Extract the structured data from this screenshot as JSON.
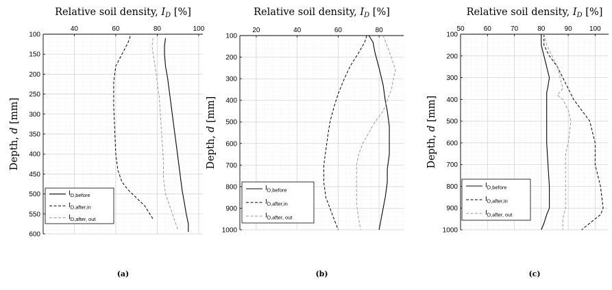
{
  "chart_data": [
    {
      "type": "line",
      "title": "Relative soil density, I_D [%]",
      "title_parts": [
        "Relative soil density, ",
        "I",
        "D",
        " [%]"
      ],
      "ylabel": "Depth, d [mm]",
      "ylabel_parts": [
        "Depth, ",
        "d",
        " [mm]"
      ],
      "caption": "(a)",
      "xlim": [
        25,
        102
      ],
      "ylim": [
        600,
        100
      ],
      "x_axis_position": "top",
      "xticks": [
        40,
        60,
        80,
        100
      ],
      "yticks": [
        100,
        150,
        200,
        250,
        300,
        350,
        400,
        450,
        500,
        550,
        600
      ],
      "grid": true,
      "legend_position": "bottom-left",
      "series": [
        {
          "name": "I_D,before",
          "legend_main": "I",
          "legend_sub": "D,before",
          "style": "solid",
          "color": "#000000",
          "x": [
            84,
            83.5,
            83.5,
            84,
            85,
            86,
            87,
            88,
            89,
            90,
            91,
            92,
            93,
            94,
            95,
            95
          ],
          "y": [
            110,
            130,
            150,
            180,
            210,
            250,
            290,
            330,
            370,
            410,
            450,
            490,
            520,
            550,
            575,
            595
          ]
        },
        {
          "name": "I_D,after,in",
          "legend_main": "I",
          "legend_sub": "D,after,in",
          "style": "dashed",
          "color": "#000000",
          "x": [
            67,
            66,
            63,
            60,
            59,
            59,
            59.5,
            60,
            61,
            63,
            66,
            70,
            74,
            78
          ],
          "y": [
            105,
            120,
            150,
            180,
            220,
            280,
            340,
            400,
            440,
            470,
            490,
            510,
            530,
            563
          ]
        },
        {
          "name": "I_D,after, out",
          "legend_main": "I",
          "legend_sub": "D,after, out",
          "style": "dashed",
          "color": "#999999",
          "x": [
            78,
            77.5,
            78,
            79,
            80,
            81,
            81.5,
            82,
            82.5,
            83,
            83,
            84,
            86,
            88,
            90
          ],
          "y": [
            110,
            130,
            150,
            180,
            220,
            260,
            300,
            340,
            380,
            420,
            460,
            500,
            530,
            560,
            590
          ]
        }
      ]
    },
    {
      "type": "line",
      "title": "Relative soil density, I_D [%]",
      "title_parts": [
        "Relative soil density, ",
        "I",
        "D",
        " [%]"
      ],
      "ylabel": "Depth, d [mm]",
      "ylabel_parts": [
        "Depth, ",
        "d",
        " [mm]"
      ],
      "caption": "(b)",
      "xlim": [
        12,
        92
      ],
      "ylim": [
        1000,
        100
      ],
      "x_axis_position": "top",
      "xticks": [
        20,
        40,
        60,
        80
      ],
      "yticks": [
        100,
        200,
        300,
        400,
        500,
        600,
        700,
        800,
        900,
        1000
      ],
      "grid": true,
      "legend_position": "bottom-left",
      "series": [
        {
          "name": "I_D,before",
          "legend_main": "I",
          "legend_sub": "D,before",
          "style": "solid",
          "color": "#000000",
          "x": [
            75,
            77,
            78,
            80,
            82,
            83,
            84,
            85,
            85,
            85,
            84,
            84,
            83,
            82,
            81,
            80
          ],
          "y": [
            100,
            130,
            180,
            250,
            330,
            400,
            450,
            520,
            580,
            650,
            720,
            780,
            850,
            900,
            950,
            1000
          ]
        },
        {
          "name": "I_D,after,in",
          "legend_main": "I",
          "legend_sub": "D,after,in",
          "style": "dashed",
          "color": "#000000",
          "x": [
            74,
            73,
            70,
            66,
            63,
            60,
            58,
            56,
            55,
            54,
            53,
            53,
            54,
            56,
            58,
            60
          ],
          "y": [
            100,
            130,
            180,
            240,
            300,
            370,
            430,
            500,
            560,
            630,
            700,
            780,
            850,
            900,
            950,
            1000
          ]
        },
        {
          "name": "I_D,after, out",
          "legend_main": "I",
          "legend_sub": "D,after, out",
          "style": "dashed",
          "color": "#999999",
          "x": [
            82,
            84,
            86,
            88,
            87,
            86,
            84,
            82,
            78,
            75,
            72,
            70,
            69,
            69,
            69,
            70,
            71
          ],
          "y": [
            100,
            150,
            200,
            260,
            300,
            350,
            400,
            450,
            500,
            550,
            600,
            650,
            700,
            800,
            880,
            950,
            1000
          ]
        }
      ]
    },
    {
      "type": "line",
      "title": "Relative soil density, I_D [%]",
      "title_parts": [
        "Relative soil density, ",
        "I",
        "D",
        " [%]"
      ],
      "ylabel": "Depth, d [mm]",
      "ylabel_parts": [
        "Depth, ",
        "d",
        " [mm]"
      ],
      "caption": "(c)",
      "xlim": [
        50,
        105
      ],
      "ylim": [
        1000,
        100
      ],
      "x_axis_position": "top",
      "xticks": [
        50,
        60,
        70,
        80,
        90,
        100
      ],
      "yticks": [
        100,
        200,
        300,
        400,
        500,
        600,
        700,
        800,
        900,
        1000
      ],
      "grid": true,
      "legend_position": "bottom-left",
      "series": [
        {
          "name": "I_D,before",
          "legend_main": "I",
          "legend_sub": "D,before",
          "style": "solid",
          "color": "#000000",
          "x": [
            80,
            80,
            81,
            82,
            83,
            82.5,
            82,
            82,
            82,
            82,
            82,
            82.5,
            83,
            83,
            83,
            82,
            81,
            80
          ],
          "y": [
            100,
            150,
            200,
            250,
            300,
            340,
            370,
            400,
            450,
            500,
            600,
            700,
            800,
            850,
            900,
            930,
            970,
            1000
          ]
        },
        {
          "name": "I_D,after,in",
          "legend_main": "I",
          "legend_sub": "D,after,in",
          "style": "dashed",
          "color": "#000000",
          "x": [
            81,
            81,
            83,
            86,
            88,
            90,
            92,
            95,
            98,
            99,
            100,
            100,
            101,
            102,
            103,
            102,
            99,
            95
          ],
          "y": [
            100,
            150,
            200,
            250,
            300,
            350,
            400,
            450,
            500,
            550,
            600,
            700,
            750,
            800,
            900,
            930,
            960,
            1000
          ]
        },
        {
          "name": "I_D,after, out",
          "legend_main": "I",
          "legend_sub": "D,after, out",
          "style": "dashed",
          "color": "#999999",
          "x": [
            81,
            82,
            84,
            86,
            87,
            88,
            86,
            88,
            90,
            91,
            90,
            89,
            89,
            89,
            89,
            88,
            88
          ],
          "y": [
            100,
            150,
            200,
            250,
            300,
            350,
            380,
            400,
            450,
            500,
            600,
            650,
            700,
            800,
            900,
            950,
            1000
          ]
        }
      ]
    }
  ]
}
